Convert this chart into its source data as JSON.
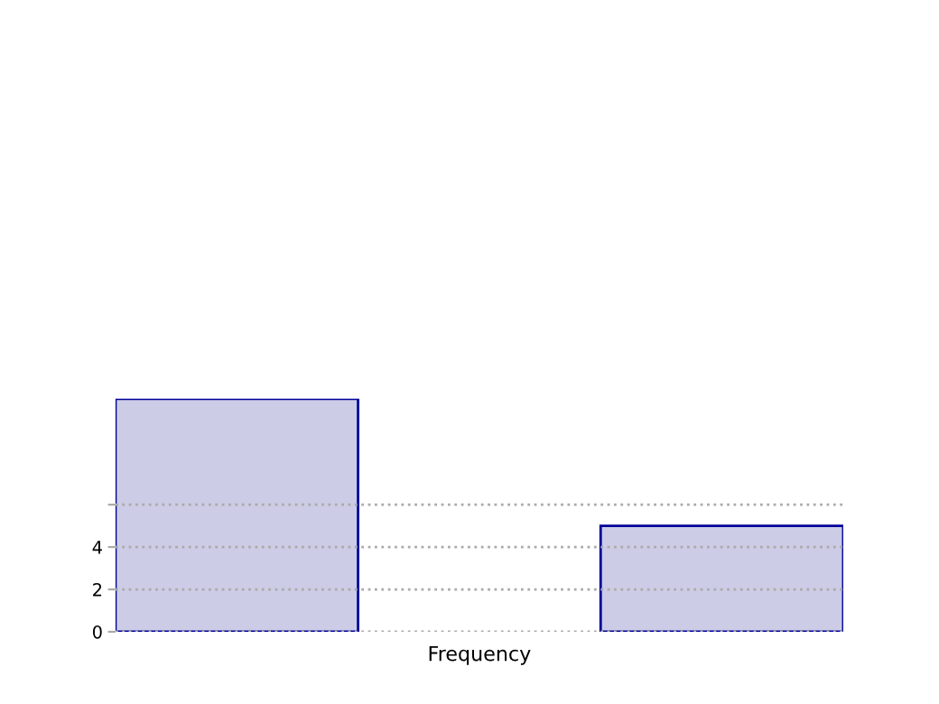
{
  "chart_data": {
    "type": "bar",
    "xlabel": "Frequency",
    "categories": [
      null,
      null,
      null
    ],
    "values": [
      11,
      0,
      5
    ],
    "color": "#cccce6",
    "ylim": [
      0,
      11
    ],
    "yticks": [
      0,
      2,
      4,
      {
        "value": 6,
        "label": null
      }
    ],
    "grid": "y"
  }
}
